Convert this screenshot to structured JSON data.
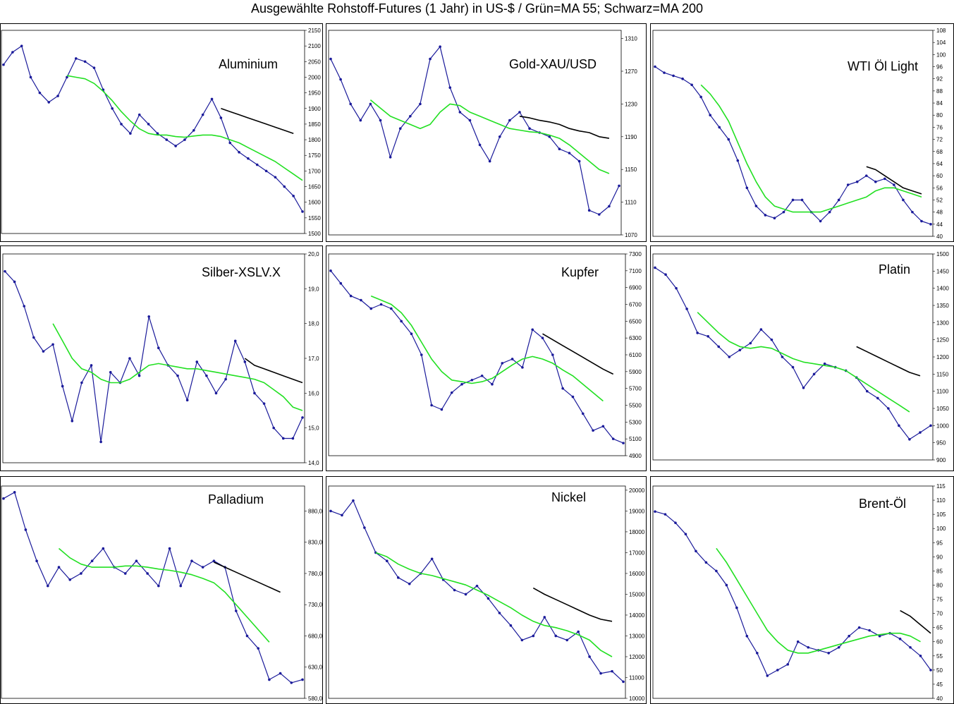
{
  "page_title": "Ausgewählte Rohstoff-Futures (1 Jahr) in US-$ / Grün=MA 55; Schwarz=MA 200",
  "colors": {
    "price": "#1a1a9a",
    "ma55": "#22e022",
    "ma200": "#000000",
    "frame": "#000000"
  },
  "chart_data": [
    {
      "type": "line",
      "title": "Aluminium",
      "ylim": [
        1500,
        2150
      ],
      "yticks": [
        1500,
        1550,
        1600,
        1650,
        1700,
        1750,
        1800,
        1850,
        1900,
        1950,
        2000,
        2050,
        2100,
        2150
      ],
      "tick_decimals": 0,
      "series": [
        {
          "name": "Kurs",
          "values": [
            2040,
            2080,
            2100,
            2000,
            1950,
            1920,
            1940,
            2000,
            2060,
            2050,
            2030,
            1960,
            1900,
            1850,
            1820,
            1880,
            1850,
            1820,
            1800,
            1780,
            1800,
            1830,
            1880,
            1930,
            1870,
            1790,
            1760,
            1740,
            1720,
            1700,
            1680,
            1650,
            1620,
            1570
          ]
        },
        {
          "name": "MA 55",
          "values": [
            null,
            null,
            null,
            null,
            null,
            null,
            null,
            2005,
            2000,
            1995,
            1980,
            1955,
            1925,
            1890,
            1860,
            1835,
            1820,
            1815,
            1815,
            1810,
            1808,
            1812,
            1815,
            1815,
            1810,
            1800,
            1790,
            1775,
            1760,
            1745,
            1730,
            1710,
            1690,
            1670
          ]
        },
        {
          "name": "MA 200",
          "values": [
            null,
            null,
            null,
            null,
            null,
            null,
            null,
            null,
            null,
            null,
            null,
            null,
            null,
            null,
            null,
            null,
            null,
            null,
            null,
            null,
            null,
            null,
            null,
            null,
            1900,
            1890,
            1880,
            1870,
            1860,
            1850,
            1840,
            1830,
            1820,
            null
          ]
        }
      ]
    },
    {
      "type": "line",
      "title": "Gold-XAU/USD",
      "ylim": [
        1070,
        1320
      ],
      "yticks": [
        1070,
        1110,
        1150,
        1190,
        1230,
        1270,
        1310
      ],
      "tick_decimals": 0,
      "series": [
        {
          "name": "Kurs",
          "values": [
            1285,
            1260,
            1230,
            1210,
            1230,
            1210,
            1165,
            1200,
            1215,
            1230,
            1285,
            1300,
            1250,
            1220,
            1210,
            1180,
            1160,
            1190,
            1210,
            1220,
            1200,
            1195,
            1190,
            1175,
            1170,
            1160,
            1100,
            1095,
            1105,
            1130
          ]
        },
        {
          "name": "MA 55",
          "values": [
            null,
            null,
            null,
            null,
            1235,
            1225,
            1215,
            1210,
            1205,
            1200,
            1205,
            1220,
            1230,
            1228,
            1220,
            1215,
            1210,
            1205,
            1200,
            1198,
            1196,
            1195,
            1192,
            1188,
            1180,
            1170,
            1160,
            1150,
            1145,
            null
          ]
        },
        {
          "name": "MA 200",
          "values": [
            null,
            null,
            null,
            null,
            null,
            null,
            null,
            null,
            null,
            null,
            null,
            null,
            null,
            null,
            null,
            null,
            null,
            null,
            null,
            1215,
            1213,
            1210,
            1208,
            1205,
            1200,
            1197,
            1195,
            1190,
            1188,
            null
          ]
        }
      ]
    },
    {
      "type": "line",
      "title": "WTI Öl Light",
      "ylim": [
        40,
        108
      ],
      "yticks": [
        40,
        44,
        48,
        52,
        56,
        60,
        64,
        68,
        72,
        76,
        80,
        84,
        88,
        92,
        96,
        100,
        104,
        108
      ],
      "tick_decimals": 0,
      "series": [
        {
          "name": "Kurs",
          "values": [
            96,
            94,
            93,
            92,
            90,
            86,
            80,
            76,
            72,
            65,
            56,
            50,
            47,
            46,
            48,
            52,
            52,
            48,
            45,
            48,
            52,
            57,
            58,
            60,
            58,
            59,
            57,
            52,
            48,
            45,
            44
          ]
        },
        {
          "name": "MA 55",
          "values": [
            null,
            null,
            null,
            null,
            null,
            90,
            87,
            83,
            78,
            71,
            64,
            58,
            53,
            50,
            49,
            48,
            48,
            48,
            48,
            49,
            50,
            51,
            52,
            53,
            55,
            56,
            56,
            55,
            54,
            53,
            null
          ]
        },
        {
          "name": "MA 200",
          "values": [
            null,
            null,
            null,
            null,
            null,
            null,
            null,
            null,
            null,
            null,
            null,
            null,
            null,
            null,
            null,
            null,
            null,
            null,
            null,
            null,
            null,
            null,
            null,
            63,
            62,
            60,
            58,
            56,
            55,
            54,
            null
          ]
        }
      ]
    },
    {
      "type": "line",
      "title": "Silber-XSLV.X",
      "ylim": [
        14,
        20
      ],
      "yticks": [
        14,
        15,
        16,
        17,
        18,
        19,
        20
      ],
      "tick_decimals": 1,
      "series": [
        {
          "name": "Kurs",
          "values": [
            19.5,
            19.2,
            18.5,
            17.6,
            17.2,
            17.4,
            16.2,
            15.2,
            16.3,
            16.8,
            14.6,
            16.6,
            16.3,
            17.0,
            16.5,
            18.2,
            17.3,
            16.8,
            16.5,
            15.8,
            16.9,
            16.5,
            16.0,
            16.4,
            17.5,
            16.9,
            16.0,
            15.7,
            15.0,
            14.7,
            14.7,
            15.3
          ]
        },
        {
          "name": "MA 55",
          "values": [
            null,
            null,
            null,
            null,
            null,
            18.0,
            17.5,
            17.0,
            16.7,
            16.6,
            16.4,
            16.3,
            16.3,
            16.4,
            16.6,
            16.8,
            16.85,
            16.8,
            16.75,
            16.7,
            16.7,
            16.65,
            16.6,
            16.55,
            16.5,
            16.45,
            16.4,
            16.3,
            16.1,
            15.9,
            15.6,
            15.5
          ]
        },
        {
          "name": "MA 200",
          "values": [
            null,
            null,
            null,
            null,
            null,
            null,
            null,
            null,
            null,
            null,
            null,
            null,
            null,
            null,
            null,
            null,
            null,
            null,
            null,
            null,
            null,
            null,
            null,
            null,
            null,
            17.0,
            16.8,
            16.7,
            16.6,
            16.5,
            16.4,
            16.3
          ]
        }
      ]
    },
    {
      "type": "line",
      "title": "Kupfer",
      "ylim": [
        4900,
        7300
      ],
      "yticks": [
        4900,
        5100,
        5300,
        5500,
        5700,
        5900,
        6100,
        6300,
        6500,
        6700,
        6900,
        7100,
        7300
      ],
      "tick_decimals": 0,
      "series": [
        {
          "name": "Kurs",
          "values": [
            7100,
            6950,
            6800,
            6750,
            6650,
            6700,
            6650,
            6500,
            6350,
            6100,
            5500,
            5450,
            5650,
            5750,
            5800,
            5850,
            5750,
            6000,
            6050,
            5950,
            6400,
            6300,
            6100,
            5700,
            5600,
            5400,
            5200,
            5250,
            5100,
            5050
          ]
        },
        {
          "name": "MA 55",
          "values": [
            null,
            null,
            null,
            null,
            6800,
            6750,
            6700,
            6600,
            6450,
            6250,
            6050,
            5900,
            5800,
            5780,
            5760,
            5780,
            5820,
            5900,
            5980,
            6050,
            6080,
            6050,
            6000,
            5920,
            5850,
            5750,
            5650,
            5550,
            null,
            null
          ]
        },
        {
          "name": "MA 200",
          "values": [
            null,
            null,
            null,
            null,
            null,
            null,
            null,
            null,
            null,
            null,
            null,
            null,
            null,
            null,
            null,
            null,
            null,
            null,
            null,
            null,
            null,
            6350,
            6280,
            6210,
            6140,
            6070,
            6000,
            5930,
            5870,
            null
          ]
        }
      ]
    },
    {
      "type": "line",
      "title": "Platin",
      "ylim": [
        900,
        1500
      ],
      "yticks": [
        900,
        950,
        1000,
        1050,
        1100,
        1150,
        1200,
        1250,
        1300,
        1350,
        1400,
        1450,
        1500
      ],
      "tick_decimals": 0,
      "series": [
        {
          "name": "Kurs",
          "values": [
            1460,
            1440,
            1400,
            1340,
            1270,
            1260,
            1230,
            1200,
            1220,
            1240,
            1280,
            1250,
            1200,
            1170,
            1110,
            1150,
            1180,
            1170,
            1160,
            1140,
            1100,
            1080,
            1050,
            1000,
            960,
            980,
            1000
          ]
        },
        {
          "name": "MA 55",
          "values": [
            null,
            null,
            null,
            null,
            1330,
            1300,
            1270,
            1245,
            1230,
            1225,
            1230,
            1225,
            1210,
            1195,
            1185,
            1180,
            1175,
            1170,
            1160,
            1140,
            1120,
            1100,
            1080,
            1060,
            1040,
            null,
            null
          ]
        },
        {
          "name": "MA 200",
          "values": [
            null,
            null,
            null,
            null,
            null,
            null,
            null,
            null,
            null,
            null,
            null,
            null,
            null,
            null,
            null,
            null,
            null,
            null,
            null,
            1230,
            1215,
            1200,
            1185,
            1170,
            1155,
            1145,
            null
          ]
        }
      ]
    },
    {
      "type": "line",
      "title": "Palladium",
      "ylim": [
        580,
        920
      ],
      "yticks": [
        580,
        630,
        680,
        730,
        780,
        830,
        880
      ],
      "tick_decimals": 1,
      "series": [
        {
          "name": "Kurs",
          "values": [
            900,
            910,
            850,
            800,
            760,
            790,
            770,
            780,
            800,
            820,
            790,
            780,
            800,
            780,
            760,
            820,
            760,
            800,
            790,
            800,
            790,
            720,
            680,
            660,
            610,
            620,
            605,
            610
          ]
        },
        {
          "name": "MA 55",
          "values": [
            null,
            null,
            null,
            null,
            null,
            820,
            805,
            795,
            790,
            790,
            790,
            792,
            792,
            790,
            787,
            785,
            782,
            778,
            772,
            765,
            750,
            730,
            710,
            690,
            670,
            null,
            null,
            null
          ]
        },
        {
          "name": "MA 200",
          "values": [
            null,
            null,
            null,
            null,
            null,
            null,
            null,
            null,
            null,
            null,
            null,
            null,
            null,
            null,
            null,
            null,
            null,
            null,
            null,
            798,
            790,
            782,
            774,
            766,
            758,
            750,
            null,
            null
          ]
        }
      ]
    },
    {
      "type": "line",
      "title": "Nickel",
      "ylim": [
        10000,
        20200
      ],
      "yticks": [
        10000,
        11000,
        12000,
        13000,
        14000,
        15000,
        16000,
        17000,
        18000,
        19000,
        20000
      ],
      "tick_decimals": 0,
      "series": [
        {
          "name": "Kurs",
          "values": [
            19000,
            18800,
            19500,
            18200,
            17000,
            16600,
            15800,
            15500,
            16000,
            16700,
            15700,
            15200,
            15000,
            15400,
            14800,
            14100,
            13500,
            12800,
            13000,
            13900,
            13000,
            12800,
            13200,
            12000,
            11200,
            11300,
            10800
          ]
        },
        {
          "name": "MA 55",
          "values": [
            null,
            null,
            null,
            null,
            17000,
            16800,
            16450,
            16200,
            16000,
            15900,
            15750,
            15600,
            15450,
            15200,
            14950,
            14650,
            14350,
            14000,
            13700,
            13500,
            13400,
            13250,
            13050,
            12800,
            12300,
            12000,
            null
          ]
        },
        {
          "name": "MA 200",
          "values": [
            null,
            null,
            null,
            null,
            null,
            null,
            null,
            null,
            null,
            null,
            null,
            null,
            null,
            null,
            null,
            null,
            null,
            null,
            15300,
            15000,
            14750,
            14500,
            14250,
            14000,
            13800,
            13700,
            null
          ]
        }
      ]
    },
    {
      "type": "line",
      "title": "Brent-Öl",
      "ylim": [
        40,
        115
      ],
      "yticks": [
        40,
        45,
        50,
        55,
        60,
        65,
        70,
        75,
        80,
        85,
        90,
        95,
        100,
        105,
        110,
        115
      ],
      "tick_decimals": 0,
      "series": [
        {
          "name": "Kurs",
          "values": [
            106,
            105,
            102,
            98,
            92,
            88,
            85,
            80,
            72,
            62,
            56,
            48,
            50,
            52,
            60,
            58,
            57,
            56,
            58,
            62,
            65,
            64,
            62,
            63,
            61,
            58,
            55,
            50
          ]
        },
        {
          "name": "MA 55",
          "values": [
            null,
            null,
            null,
            null,
            null,
            null,
            93,
            88,
            82,
            76,
            70,
            64,
            60,
            57,
            56,
            56,
            57,
            58,
            59,
            60,
            61,
            62,
            62.5,
            63,
            63,
            62,
            60,
            null
          ]
        },
        {
          "name": "MA 200",
          "values": [
            null,
            null,
            null,
            null,
            null,
            null,
            null,
            null,
            null,
            null,
            null,
            null,
            null,
            null,
            null,
            null,
            null,
            null,
            null,
            null,
            null,
            null,
            null,
            null,
            71,
            69,
            66,
            63
          ]
        }
      ]
    }
  ]
}
